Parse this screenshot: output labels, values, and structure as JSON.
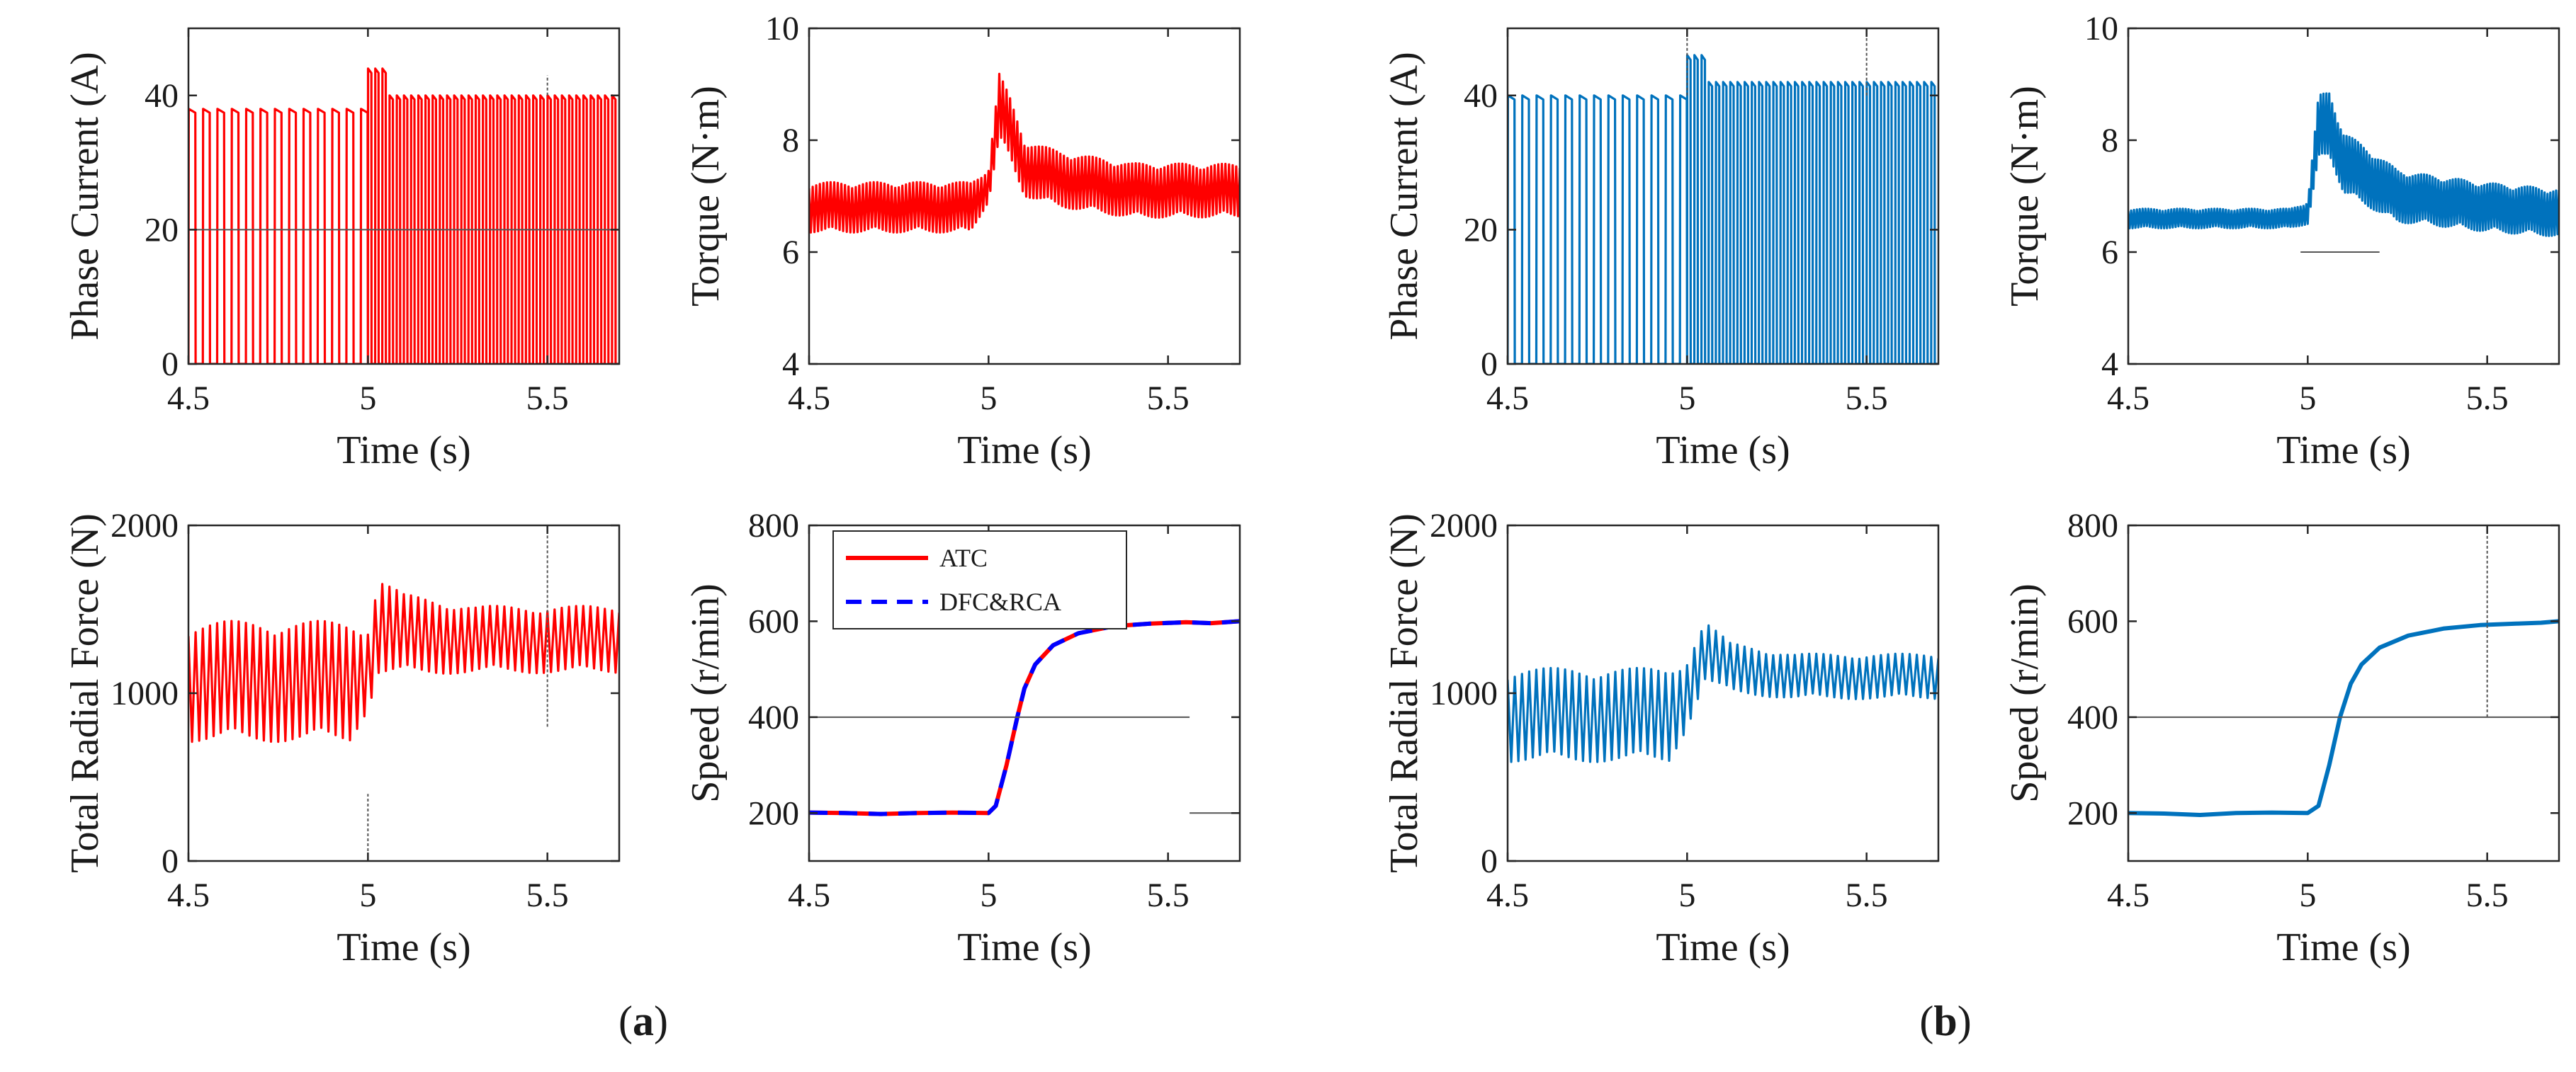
{
  "figure": {
    "panel_labels": [
      {
        "open": "(",
        "letter": "a",
        "close": ")"
      },
      {
        "open": "(",
        "letter": "b",
        "close": ")"
      }
    ],
    "colors": {
      "atc": "#ff0000",
      "dfc": "#0072bd",
      "legend_dfc": "#0000ff",
      "axis": "#262626",
      "guide": "#555555"
    }
  },
  "chart_data": [
    {
      "id": "a-current",
      "panel": "a",
      "type": "line",
      "title": "",
      "xlabel": "Time (s)",
      "ylabel": "Phase Current (A)",
      "xlim": [
        4.5,
        5.7
      ],
      "ylim": [
        0,
        50
      ],
      "xticks": [
        4.5,
        5,
        5.5
      ],
      "xtick_labels": [
        "4.5",
        "5",
        "5.5"
      ],
      "yticks": [
        0,
        20,
        40
      ],
      "ytick_labels": [
        "0",
        "20",
        "40"
      ],
      "series": [
        {
          "name": "ATC",
          "color": "#ff0000",
          "kind": "pulse",
          "segments": [
            {
              "from": 4.5,
              "to": 5.0,
              "period": 0.04,
              "peak": 38,
              "base": 0,
              "duty": 0.5
            },
            {
              "from": 5.0,
              "to": 5.7,
              "period": 0.02,
              "peak": 40,
              "base": 0,
              "duty": 0.5,
              "overshoot": [
                5.02,
                44
              ]
            }
          ]
        }
      ],
      "guides": [
        {
          "axis": "y",
          "value": 20
        },
        {
          "axis": "x",
          "value": 5.5,
          "y_from": 40,
          "y_to": 43
        }
      ]
    },
    {
      "id": "a-torque",
      "panel": "a",
      "type": "line",
      "title": "",
      "xlabel": "Time (s)",
      "ylabel": "Torque (N·m)",
      "xlim": [
        4.5,
        5.7
      ],
      "ylim": [
        4,
        10
      ],
      "xticks": [
        4.5,
        5,
        5.5
      ],
      "xtick_labels": [
        "4.5",
        "5",
        "5.5"
      ],
      "yticks": [
        4,
        6,
        8,
        10
      ],
      "ytick_labels": [
        "4",
        "6",
        "8",
        "10"
      ],
      "series": [
        {
          "name": "ATC",
          "color": "#ff0000",
          "kind": "ripple",
          "points": [
            [
              4.5,
              6.8
            ],
            [
              4.95,
              6.8
            ],
            [
              5.0,
              7.2
            ],
            [
              5.03,
              8.6
            ],
            [
              5.06,
              8.2
            ],
            [
              5.1,
              7.5
            ],
            [
              5.2,
              7.3
            ],
            [
              5.4,
              7.1
            ],
            [
              5.7,
              7.1
            ]
          ],
          "ripple": [
            [
              4.5,
              0.9
            ],
            [
              4.95,
              0.9
            ],
            [
              5.0,
              0.6
            ],
            [
              5.03,
              1.2
            ],
            [
              5.1,
              1.0
            ],
            [
              5.7,
              0.95
            ]
          ],
          "period": 0.01
        }
      ],
      "guides": []
    },
    {
      "id": "a-radial",
      "panel": "a",
      "type": "line",
      "title": "",
      "xlabel": "Time (s)",
      "ylabel": "Total Radial Force (N)",
      "xlim": [
        4.5,
        5.7
      ],
      "ylim": [
        0,
        2000
      ],
      "xticks": [
        4.5,
        5,
        5.5
      ],
      "xtick_labels": [
        "4.5",
        "5",
        "5.5"
      ],
      "yticks": [
        0,
        1000,
        2000
      ],
      "ytick_labels": [
        "0",
        "1000",
        "2000"
      ],
      "series": [
        {
          "name": "ATC",
          "color": "#ff0000",
          "kind": "ripple",
          "points": [
            [
              4.5,
              1070
            ],
            [
              4.95,
              1070
            ],
            [
              5.0,
              1150
            ],
            [
              5.03,
              1400
            ],
            [
              5.1,
              1350
            ],
            [
              5.3,
              1320
            ],
            [
              5.7,
              1320
            ]
          ],
          "ripple": [
            [
              4.5,
              720
            ],
            [
              4.95,
              720
            ],
            [
              5.0,
              500
            ],
            [
              5.03,
              580
            ],
            [
              5.1,
              480
            ],
            [
              5.3,
              400
            ],
            [
              5.7,
              400
            ]
          ],
          "period": 0.02
        }
      ],
      "guides": [
        {
          "axis": "x",
          "value": 5.0,
          "y_from": 0,
          "y_to": 400
        },
        {
          "axis": "x",
          "value": 5.5,
          "y_from": 800,
          "y_to": 2000
        }
      ]
    },
    {
      "id": "a-speed",
      "panel": "a",
      "type": "line",
      "title": "",
      "xlabel": "Time (s)",
      "ylabel": "Speed (r/min)",
      "xlim": [
        4.5,
        5.7
      ],
      "ylim": [
        100,
        800
      ],
      "xticks": [
        4.5,
        5,
        5.5
      ],
      "xtick_labels": [
        "4.5",
        "5",
        "5.5"
      ],
      "yticks": [
        200,
        400,
        600,
        800
      ],
      "ytick_labels": [
        "200",
        "400",
        "600",
        "800"
      ],
      "series": [
        {
          "name": "ATC",
          "color": "#ff0000",
          "kind": "smooth",
          "dash": false,
          "legend": true,
          "points": [
            [
              4.5,
              201
            ],
            [
              4.6,
              200
            ],
            [
              4.7,
              198
            ],
            [
              4.8,
              200
            ],
            [
              4.9,
              201
            ],
            [
              5.0,
              200
            ],
            [
              5.02,
              215
            ],
            [
              5.05,
              300
            ],
            [
              5.08,
              400
            ],
            [
              5.1,
              460
            ],
            [
              5.13,
              510
            ],
            [
              5.18,
              550
            ],
            [
              5.25,
              575
            ],
            [
              5.35,
              590
            ],
            [
              5.45,
              595
            ],
            [
              5.55,
              598
            ],
            [
              5.62,
              596
            ],
            [
              5.7,
              600
            ]
          ]
        },
        {
          "name": "DFC&RCA",
          "color": "#0000ff",
          "kind": "smooth",
          "dash": true,
          "legend": true,
          "points": [
            [
              4.5,
              201
            ],
            [
              4.6,
              200
            ],
            [
              4.7,
              198
            ],
            [
              4.8,
              200
            ],
            [
              4.9,
              201
            ],
            [
              5.0,
              200
            ],
            [
              5.02,
              215
            ],
            [
              5.05,
              300
            ],
            [
              5.08,
              400
            ],
            [
              5.1,
              460
            ],
            [
              5.13,
              510
            ],
            [
              5.18,
              550
            ],
            [
              5.25,
              575
            ],
            [
              5.35,
              590
            ],
            [
              5.45,
              595
            ],
            [
              5.55,
              598
            ],
            [
              5.62,
              596
            ],
            [
              5.7,
              600
            ]
          ]
        }
      ],
      "legend": [
        {
          "label": "ATC",
          "color": "#ff0000",
          "dash": false
        },
        {
          "label": "DFC&RCA",
          "color": "#0000ff",
          "dash": true
        }
      ],
      "legend_position": "top-left",
      "guides": [
        {
          "axis": "y",
          "value": 400,
          "x_from": 4.5,
          "x_to": 5.56
        },
        {
          "axis": "y",
          "value": 200,
          "x_from": 5.56,
          "x_to": 5.7
        }
      ]
    },
    {
      "id": "b-current",
      "panel": "b",
      "type": "line",
      "title": "",
      "xlabel": "Time (s)",
      "ylabel": "Phase Current (A)",
      "xlim": [
        4.5,
        5.7
      ],
      "ylim": [
        0,
        50
      ],
      "xticks": [
        4.5,
        5,
        5.5
      ],
      "xtick_labels": [
        "4.5",
        "5",
        "5.5"
      ],
      "yticks": [
        0,
        20,
        40
      ],
      "ytick_labels": [
        "0",
        "20",
        "40"
      ],
      "series": [
        {
          "name": "DFC&RCA",
          "color": "#0072bd",
          "kind": "pulse",
          "segments": [
            {
              "from": 4.5,
              "to": 5.0,
              "period": 0.04,
              "peak": 40,
              "base": 0,
              "duty": 0.5
            },
            {
              "from": 5.0,
              "to": 5.7,
              "period": 0.02,
              "peak": 42,
              "base": 0,
              "duty": 0.5,
              "overshoot": [
                5.05,
                46
              ]
            }
          ]
        }
      ],
      "guides": [
        {
          "axis": "x",
          "value": 5.0,
          "y_from": 40,
          "y_to": 50
        },
        {
          "axis": "x",
          "value": 5.5,
          "y_from": 40,
          "y_to": 50
        }
      ]
    },
    {
      "id": "b-torque",
      "panel": "b",
      "type": "line",
      "title": "",
      "xlabel": "Time (s)",
      "ylabel": "Torque (N·m)",
      "xlim": [
        4.5,
        5.7
      ],
      "ylim": [
        4,
        10
      ],
      "xticks": [
        4.5,
        5,
        5.5
      ],
      "xtick_labels": [
        "4.5",
        "5",
        "5.5"
      ],
      "yticks": [
        4,
        6,
        8,
        10
      ],
      "ytick_labels": [
        "4",
        "6",
        "8",
        "10"
      ],
      "series": [
        {
          "name": "DFC&RCA",
          "color": "#0072bd",
          "kind": "ripple",
          "points": [
            [
              4.5,
              6.6
            ],
            [
              4.95,
              6.6
            ],
            [
              5.0,
              6.7
            ],
            [
              5.03,
              8.2
            ],
            [
              5.06,
              8.3
            ],
            [
              5.1,
              7.6
            ],
            [
              5.25,
              7.0
            ],
            [
              5.5,
              6.8
            ],
            [
              5.7,
              6.7
            ]
          ],
          "ripple": [
            [
              4.5,
              0.35
            ],
            [
              4.95,
              0.35
            ],
            [
              5.0,
              0.4
            ],
            [
              5.03,
              1.2
            ],
            [
              5.1,
              1.1
            ],
            [
              5.3,
              0.9
            ],
            [
              5.7,
              0.85
            ]
          ],
          "period": 0.008
        }
      ],
      "guides": [
        {
          "axis": "y",
          "value": 6.0,
          "x_from": 4.98,
          "x_to": 5.2
        }
      ]
    },
    {
      "id": "b-radial",
      "panel": "b",
      "type": "line",
      "title": "",
      "xlabel": "Time (s)",
      "ylabel": "Total Radial Force (N)",
      "xlim": [
        4.5,
        5.7
      ],
      "ylim": [
        0,
        2000
      ],
      "xticks": [
        4.5,
        5,
        5.5
      ],
      "xtick_labels": [
        "4.5",
        "5",
        "5.5"
      ],
      "yticks": [
        0,
        1000,
        2000
      ],
      "ytick_labels": [
        "0",
        "1000",
        "2000"
      ],
      "series": [
        {
          "name": "DFC&RCA",
          "color": "#0072bd",
          "kind": "ripple",
          "points": [
            [
              4.5,
              870
            ],
            [
              4.95,
              870
            ],
            [
              5.0,
              1000
            ],
            [
              5.05,
              1250
            ],
            [
              5.12,
              1150
            ],
            [
              5.3,
              1100
            ],
            [
              5.7,
              1100
            ]
          ],
          "ripple": [
            [
              4.5,
              560
            ],
            [
              4.95,
              560
            ],
            [
              5.0,
              420
            ],
            [
              5.05,
              360
            ],
            [
              5.12,
              300
            ],
            [
              5.3,
              270
            ],
            [
              5.7,
              270
            ]
          ],
          "period": 0.02
        }
      ],
      "guides": []
    },
    {
      "id": "b-speed",
      "panel": "b",
      "type": "line",
      "title": "",
      "xlabel": "Time (s)",
      "ylabel": "Speed (r/min)",
      "xlim": [
        4.5,
        5.7
      ],
      "ylim": [
        100,
        800
      ],
      "xticks": [
        4.5,
        5,
        5.5
      ],
      "xtick_labels": [
        "4.5",
        "5",
        "5.5"
      ],
      "yticks": [
        200,
        400,
        600,
        800
      ],
      "ytick_labels": [
        "200",
        "400",
        "600",
        "800"
      ],
      "series": [
        {
          "name": "DFC&RCA",
          "color": "#0072bd",
          "kind": "smooth",
          "dash": false,
          "legend": false,
          "points": [
            [
              4.5,
              200
            ],
            [
              4.6,
              199
            ],
            [
              4.7,
              196
            ],
            [
              4.8,
              200
            ],
            [
              4.9,
              201
            ],
            [
              5.0,
              200
            ],
            [
              5.03,
              215
            ],
            [
              5.06,
              300
            ],
            [
              5.09,
              400
            ],
            [
              5.12,
              470
            ],
            [
              5.15,
              510
            ],
            [
              5.2,
              545
            ],
            [
              5.28,
              570
            ],
            [
              5.38,
              585
            ],
            [
              5.48,
              592
            ],
            [
              5.58,
              595
            ],
            [
              5.65,
              597
            ],
            [
              5.7,
              600
            ]
          ]
        }
      ],
      "guides": [
        {
          "axis": "y",
          "value": 400
        },
        {
          "axis": "x",
          "value": 5.5,
          "y_from": 400,
          "y_to": 800
        }
      ]
    }
  ]
}
